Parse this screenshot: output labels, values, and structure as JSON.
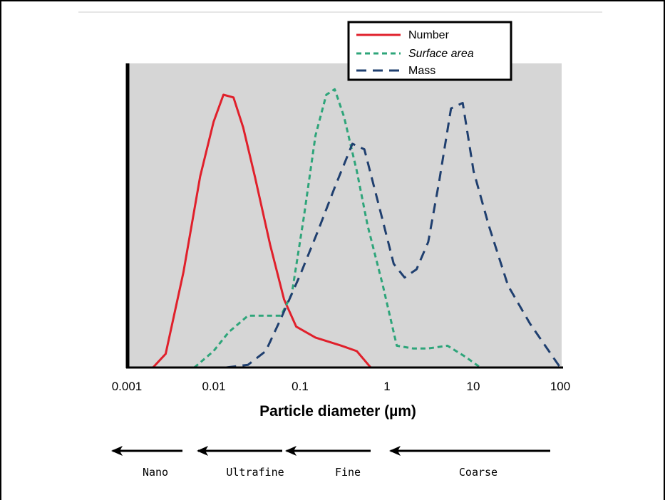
{
  "chart_data": {
    "type": "line",
    "xlabel": "Particle diameter (µm)",
    "ylabel": "",
    "x_scale": "log",
    "xlim": [
      0.001,
      100
    ],
    "ylim": [
      0,
      1
    ],
    "x_tick_labels": [
      "0.001",
      "0.01",
      "0.1",
      "1",
      "10",
      "100"
    ],
    "x_tick_values": [
      0.001,
      0.01,
      0.1,
      1,
      10,
      100
    ],
    "grid": false,
    "legend_position": "top-right",
    "series": [
      {
        "name": "Number",
        "style": "solid",
        "color": "#e0202b",
        "x": [
          0.002,
          0.0028,
          0.0045,
          0.007,
          0.01,
          0.013,
          0.017,
          0.022,
          0.03,
          0.045,
          0.065,
          0.09,
          0.15,
          0.3,
          0.45,
          0.65
        ],
        "y": [
          0.0,
          0.05,
          0.35,
          0.7,
          0.9,
          1.0,
          0.99,
          0.88,
          0.7,
          0.45,
          0.25,
          0.15,
          0.11,
          0.08,
          0.06,
          0.0
        ]
      },
      {
        "name": "Surface area",
        "style": "dotted",
        "color": "#2ea57a",
        "x": [
          0.006,
          0.01,
          0.015,
          0.025,
          0.04,
          0.06,
          0.08,
          0.11,
          0.15,
          0.2,
          0.25,
          0.32,
          0.45,
          0.6,
          0.9,
          1.3,
          2,
          3,
          5,
          8,
          12
        ],
        "y": [
          0.0,
          0.06,
          0.13,
          0.19,
          0.19,
          0.19,
          0.27,
          0.55,
          0.85,
          1.0,
          1.02,
          0.92,
          0.72,
          0.52,
          0.3,
          0.08,
          0.07,
          0.07,
          0.08,
          0.04,
          0.0
        ]
      },
      {
        "name": "Mass",
        "style": "dashed",
        "color": "#1f3f6f",
        "x": [
          0.014,
          0.025,
          0.04,
          0.06,
          0.1,
          0.16,
          0.25,
          0.4,
          0.55,
          0.8,
          1.2,
          1.6,
          2.2,
          3,
          4,
          5.5,
          7.5,
          10,
          15,
          25,
          45,
          100
        ],
        "y": [
          0.0,
          0.01,
          0.06,
          0.18,
          0.34,
          0.5,
          0.66,
          0.82,
          0.8,
          0.6,
          0.38,
          0.33,
          0.36,
          0.46,
          0.68,
          0.95,
          0.97,
          0.72,
          0.52,
          0.3,
          0.16,
          0.0
        ]
      }
    ]
  },
  "size_classes": [
    {
      "label": "Nano"
    },
    {
      "label": "Ultrafine"
    },
    {
      "label": "Fine"
    },
    {
      "label": "Coarse"
    }
  ]
}
